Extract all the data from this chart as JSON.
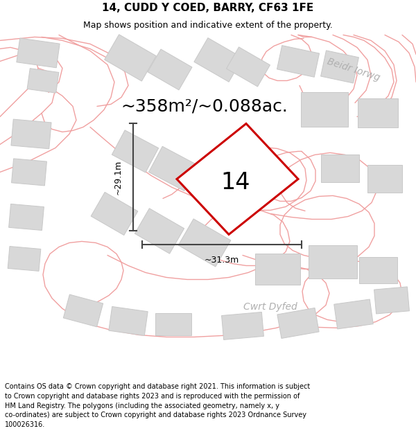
{
  "title": "14, CUDD Y COED, BARRY, CF63 1FE",
  "subtitle": "Map shows position and indicative extent of the property.",
  "footer": "Contains OS data © Crown copyright and database right 2021. This information is subject\nto Crown copyright and database rights 2023 and is reproduced with the permission of\nHM Land Registry. The polygons (including the associated geometry, namely x, y\nco-ordinates) are subject to Crown copyright and database rights 2023 Ordnance Survey\n100026316.",
  "area_label": "~358m²/~0.088ac.",
  "plot_number": "14",
  "dim_vertical": "~29.1m",
  "dim_horizontal": "~31.3m",
  "street_label_1": "Beidr Iorwg",
  "street_label_2": "Cwrt Dyfed",
  "road_color": "#f0a0a0",
  "building_fill": "#d8d8d8",
  "building_edge": "#c8c8c8",
  "plot_edge": "#cc0000",
  "dim_line_color": "#444444",
  "title_fontsize": 11,
  "subtitle_fontsize": 9,
  "footer_fontsize": 7.0,
  "area_fontsize": 18,
  "plot_num_fontsize": 24,
  "street_fontsize": 10
}
